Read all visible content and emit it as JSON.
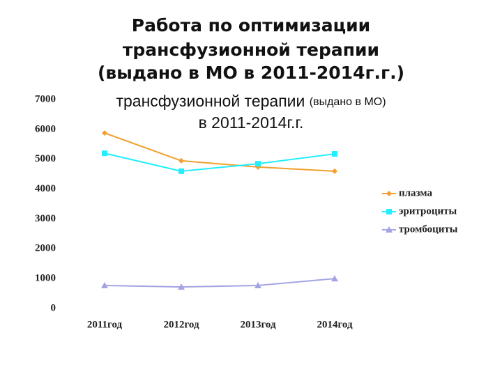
{
  "chart_data": {
    "type": "line",
    "title": [
      "Работа по оптимизации",
      "трансфузионной терапии",
      "(выдано в МО в 2011-2014г.г.)"
    ],
    "subtitle": [
      "трансфузионной терапии",
      "(выдано в МО)",
      "в 2011-2014г.г."
    ],
    "categories": [
      "2011год",
      "2012год",
      "2013год",
      "2014год"
    ],
    "series": [
      {
        "name": "плазма",
        "color": "#f0a030",
        "marker": "diamond",
        "values": [
          5880,
          4950,
          4740,
          4600
        ]
      },
      {
        "name": "эритроциты",
        "color": "#22eeff",
        "marker": "square",
        "values": [
          5200,
          4600,
          4850,
          5180
        ]
      },
      {
        "name": "тромбоциты",
        "color": "#a4a4e4",
        "marker": "triangle",
        "values": [
          770,
          720,
          770,
          1000
        ]
      }
    ],
    "ylim": [
      0,
      7000
    ],
    "yticks": [
      0,
      1000,
      2000,
      3000,
      4000,
      5000,
      6000,
      7000
    ],
    "grid": false,
    "legend": "right"
  }
}
